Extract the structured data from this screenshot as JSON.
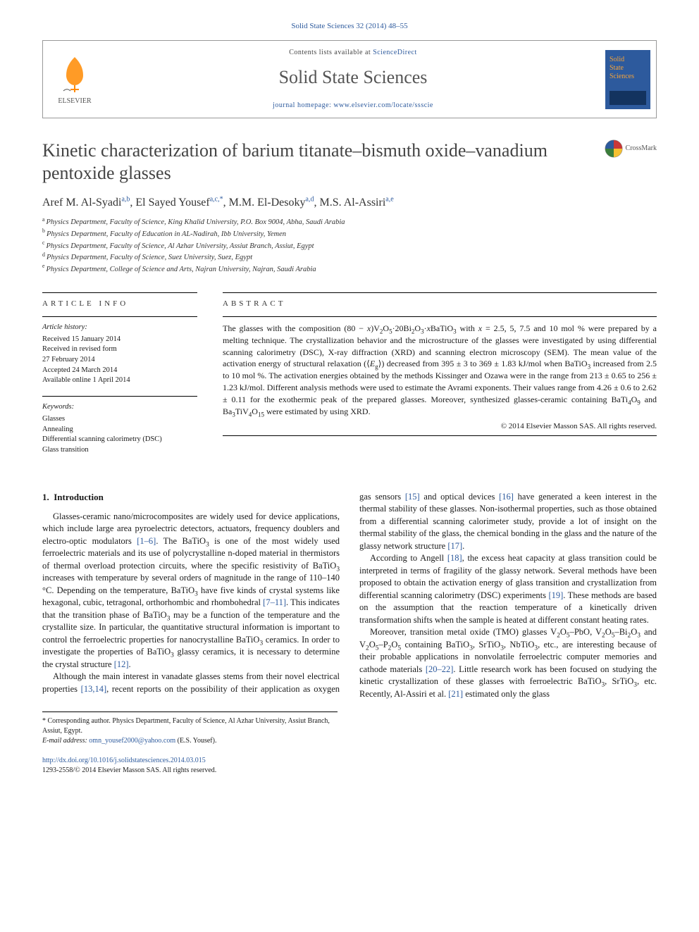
{
  "journal_ref": "Solid State Sciences 32 (2014) 48–55",
  "header": {
    "publisher": "ELSEVIER",
    "contents_prefix": "Contents lists available at ",
    "contents_link": "ScienceDirect",
    "journal_title": "Solid State Sciences",
    "homepage_prefix": "journal homepage: ",
    "homepage_url": "www.elsevier.com/locate/ssscie",
    "cover_title_lines": [
      "Solid",
      "State",
      "Sciences"
    ],
    "logo_fill": "#ff8a00",
    "cover_bg": "#2d5a9d",
    "cover_text_color": "#f5a33a"
  },
  "crossmark_label": "CrossMark",
  "title": "Kinetic characterization of barium titanate–bismuth oxide–vanadium pentoxide glasses",
  "authors_html": "Aref M. Al-Syadi<sup>a,b</sup>, El Sayed Yousef<sup>a,c,*</sup>, M.M. El-Desoky<sup>a,d</sup>, M.S. Al-Assiri<sup>a,e</sup>",
  "affiliations": [
    {
      "sup": "a",
      "text": "Physics Department, Faculty of Science, King Khalid University, P.O. Box 9004, Abha, Saudi Arabia"
    },
    {
      "sup": "b",
      "text": "Physics Department, Faculty of Education in AL-Nadirah, Ibb University, Yemen"
    },
    {
      "sup": "c",
      "text": "Physics Department, Faculty of Science, Al Azhar University, Assiut Branch, Assiut, Egypt"
    },
    {
      "sup": "d",
      "text": "Physics Department, Faculty of Science, Suez University, Suez, Egypt"
    },
    {
      "sup": "e",
      "text": "Physics Department, College of Science and Arts, Najran University, Najran, Saudi Arabia"
    }
  ],
  "article_info": {
    "head": "ARTICLE INFO",
    "history_head": "Article history:",
    "history": [
      "Received 15 January 2014",
      "Received in revised form",
      "27 February 2014",
      "Accepted 24 March 2014",
      "Available online 1 April 2014"
    ],
    "keywords_head": "Keywords:",
    "keywords": [
      "Glasses",
      "Annealing",
      "Differential scanning calorimetry (DSC)",
      "Glass transition"
    ]
  },
  "abstract": {
    "head": "ABSTRACT",
    "text_html": "The glasses with the composition (80 − <i>x</i>)V<sub>2</sub>O<sub>5</sub>·20Bi<sub>2</sub>O<sub>3</sub>·<i>x</i>BaTiO<sub>3</sub> with <i>x</i> = 2.5, 5, 7.5 and 10 mol % were prepared by a melting technique. The crystallization behavior and the microstructure of the glasses were investigated by using differential scanning calorimetry (DSC), X-ray diffraction (XRD) and scanning electron microscopy (SEM). The mean value of the activation energy of structural relaxation (⟨<i>E</i><sub>g</sub>⟩) decreased from 395 ± 3 to 369 ± 1.83 kJ/mol when BaTiO<sub>3</sub> increased from 2.5 to 10 mol %. The activation energies obtained by the methods Kissinger and Ozawa were in the range from 213 ± 0.65 to 256 ± 1.23 kJ/mol. Different analysis methods were used to estimate the Avrami exponents. Their values range from 4.26 ± 0.6 to 2.62 ± 0.11 for the exothermic peak of the prepared glasses. Moreover, synthesized glasses-ceramic containing BaTi<sub>4</sub>O<sub>9</sub> and Ba<sub>3</sub>TiV<sub>4</sub>O<sub>15</sub> were estimated by using XRD.",
    "copyright": "© 2014 Elsevier Masson SAS. All rights reserved."
  },
  "body": {
    "section_num": "1.",
    "section_title": "Introduction",
    "p1_html": "Glasses-ceramic nano/microcomposites are widely used for device applications, which include large area pyroelectric detectors, actuators, frequency doublers and electro-optic modulators <span class='ref'>[1–6]</span>. The BaTiO<sub>3</sub> is one of the most widely used ferroelectric materials and its use of polycrystalline n-doped material in thermistors of thermal overload protection circuits, where the specific resistivity of BaTiO<sub>3</sub> increases with temperature by several orders of magnitude in the range of 110–140 °C. Depending on the temperature, BaTiO<sub>3</sub> have five kinds of crystal systems like hexagonal, cubic, tetragonal, orthorhombic and rhombohedral <span class='ref'>[7–11]</span>. This indicates that the transition phase of BaTiO<sub>3</sub> may be a function of the temperature and the crystallite size. In particular, the quantitative structural information is important to control the ferroelectric properties for nanocrystalline BaTiO<sub>3</sub> ceramics. In order to investigate the properties of BaTiO<sub>3</sub> glassy ceramics, it is necessary to determine the crystal structure <span class='ref'>[12]</span>.",
    "p2_html": "Although the main interest in vanadate glasses stems from their novel electrical properties <span class='ref'>[13,14]</span>, recent reports on the possibility of their application as oxygen gas sensors <span class='ref'>[15]</span> and optical devices <span class='ref'>[16]</span> have generated a keen interest in the thermal stability of these glasses. Non-isothermal properties, such as those obtained from a differential scanning calorimeter study, provide a lot of insight on the thermal stability of the glass, the chemical bonding in the glass and the nature of the glassy network structure <span class='ref'>[17]</span>.",
    "p3_html": "According to Angell <span class='ref'>[18]</span>, the excess heat capacity at glass transition could be interpreted in terms of fragility of the glassy network. Several methods have been proposed to obtain the activation energy of glass transition and crystallization from differential scanning calorimetry (DSC) experiments <span class='ref'>[19]</span>. These methods are based on the assumption that the reaction temperature of a kinetically driven transformation shifts when the sample is heated at different constant heating rates.",
    "p4_html": "Moreover, transition metal oxide (TMO) glasses V<sub>2</sub>O<sub>5</sub>–PbO, V<sub>2</sub>O<sub>5</sub>–Bi<sub>2</sub>O<sub>3</sub> and V<sub>2</sub>O<sub>5</sub>–P<sub>2</sub>O<sub>5</sub> containing BaTiO<sub>3</sub>, SrTiO<sub>3</sub>, NbTiO<sub>3</sub>, etc., are interesting because of their probable applications in nonvolatile ferroelectric computer memories and cathode materials <span class='ref'>[20–22]</span>. Little research work has been focused on studying the kinetic crystallization of these glasses with ferroelectric BaTiO<sub>3</sub>, SrTiO<sub>3</sub>, etc. Recently, Al-Assiri et al. <span class='ref'>[21]</span> estimated only the glass"
  },
  "footer": {
    "corr": "* Corresponding author. Physics Department, Faculty of Science, Al Azhar University, Assiut Branch, Assiut, Egypt.",
    "email_label": "E-mail address: ",
    "email": "omn_yousef2000@yahoo.com",
    "email_who": " (E.S. Yousef).",
    "doi": "http://dx.doi.org/10.1016/j.solidstatesciences.2014.03.015",
    "issn_copy": "1293-2558/© 2014 Elsevier Masson SAS. All rights reserved."
  }
}
